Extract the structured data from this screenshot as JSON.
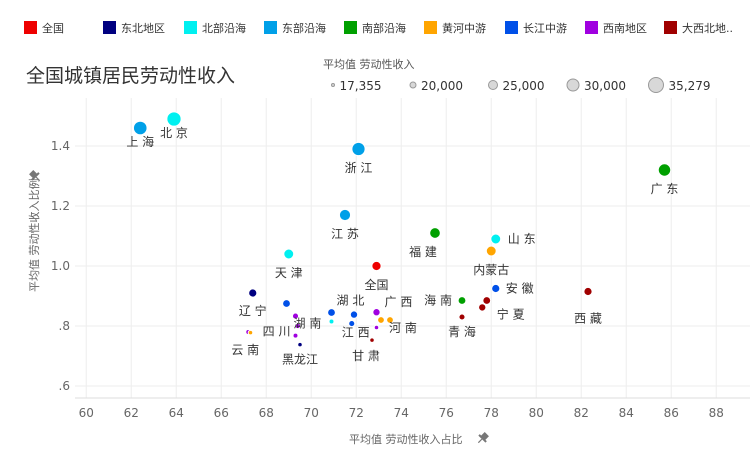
{
  "title": "全国城镇居民劳动性收入",
  "legend": {
    "items": [
      {
        "name": "全国",
        "color": "#ee0000"
      },
      {
        "name": "东北地区",
        "color": "#000080"
      },
      {
        "name": "北部沿海",
        "color": "#00f0f0"
      },
      {
        "name": "东部沿海",
        "color": "#00a0e8"
      },
      {
        "name": "南部沿海",
        "color": "#00a000"
      },
      {
        "name": "黄河中游",
        "color": "#ffa500"
      },
      {
        "name": "长江中游",
        "color": "#0050e8"
      },
      {
        "name": "西南地区",
        "color": "#a000e0"
      },
      {
        "name": "大西北地..",
        "color": "#a00000"
      }
    ]
  },
  "size_legend": {
    "title": "平均值 劳动性收入",
    "items": [
      "17,355",
      "20,000",
      "25,000",
      "30,000",
      "35,279"
    ]
  },
  "icons": {
    "x_axis_pin": "pin-icon",
    "y_axis_pin": "pin-icon"
  },
  "chart_data": {
    "type": "scatter",
    "xlabel": "平均值 劳动性收入占比",
    "ylabel": "平均值 劳动性收入比例",
    "xlim": [
      59.5,
      89.5
    ],
    "ylim": [
      0.56,
      1.56
    ],
    "x_ticks": [
      "60",
      "62",
      "64",
      "66",
      "68",
      "70",
      "72",
      "74",
      "76",
      "78",
      "80",
      "82",
      "84",
      "86",
      "88"
    ],
    "y_ticks": [
      ".6",
      ".8",
      "1.0",
      "1.2",
      "1.4"
    ],
    "points": [
      {
        "label": "上 海",
        "x": 62.4,
        "y": 1.46,
        "size": 31000,
        "group": "东部沿海"
      },
      {
        "label": "北 京",
        "x": 63.9,
        "y": 1.49,
        "size": 33000,
        "group": "北部沿海"
      },
      {
        "label": "浙 江",
        "x": 72.1,
        "y": 1.39,
        "size": 30000,
        "group": "东部沿海"
      },
      {
        "label": "广 东",
        "x": 85.7,
        "y": 1.32,
        "size": 28000,
        "group": "南部沿海"
      },
      {
        "label": "江 苏",
        "x": 71.5,
        "y": 1.17,
        "size": 25000,
        "group": "东部沿海"
      },
      {
        "label": "福 建",
        "x": 75.5,
        "y": 1.11,
        "size": 24000,
        "group": "南部沿海"
      },
      {
        "label": "山 东",
        "x": 78.2,
        "y": 1.09,
        "size": 22500,
        "group": "北部沿海"
      },
      {
        "label": "内蒙古",
        "x": 78.0,
        "y": 1.05,
        "size": 22500,
        "group": "黄河中游"
      },
      {
        "label": "天 津",
        "x": 69.0,
        "y": 1.04,
        "size": 22500,
        "group": "北部沿海"
      },
      {
        "label": "全国",
        "x": 72.9,
        "y": 1.0,
        "size": 21500,
        "group": "全国"
      },
      {
        "label": "辽 宁",
        "x": 67.4,
        "y": 0.91,
        "size": 20000,
        "group": "东北地区"
      },
      {
        "label": "湖 南",
        "x": 68.9,
        "y": 0.875,
        "size": 19500,
        "group": "长江中游"
      },
      {
        "label": "湖 北",
        "x": 70.9,
        "y": 0.845,
        "size": 19500,
        "group": "长江中游"
      },
      {
        "label": "",
        "x": 71.9,
        "y": 0.838,
        "size": 19000,
        "group": "长江中游"
      },
      {
        "label": "广 西",
        "x": 72.9,
        "y": 0.846,
        "size": 19000,
        "group": "西南地区"
      },
      {
        "label": "海 南",
        "x": 76.7,
        "y": 0.885,
        "size": 19500,
        "group": "南部沿海"
      },
      {
        "label": "安 徽",
        "x": 78.2,
        "y": 0.925,
        "size": 20000,
        "group": "长江中游"
      },
      {
        "label": "西 藏",
        "x": 82.3,
        "y": 0.915,
        "size": 20000,
        "group": "大西北地.."
      },
      {
        "label": "宁 夏",
        "x": 77.8,
        "y": 0.885,
        "size": 19500,
        "group": "大西北地.."
      },
      {
        "label": "",
        "x": 77.6,
        "y": 0.862,
        "size": 19000,
        "group": "大西北地.."
      },
      {
        "label": "青 海",
        "x": 76.7,
        "y": 0.83,
        "size": 18000,
        "group": "大西北地.."
      },
      {
        "label": "",
        "x": 70.9,
        "y": 0.815,
        "size": 17500,
        "group": "北部沿海"
      },
      {
        "label": "江 西",
        "x": 71.8,
        "y": 0.808,
        "size": 18000,
        "group": "长江中游"
      },
      {
        "label": "河 南",
        "x": 73.1,
        "y": 0.82,
        "size": 18500,
        "group": "黄河中游"
      },
      {
        "label": "",
        "x": 73.5,
        "y": 0.82,
        "size": 18500,
        "group": "黄河中游"
      },
      {
        "label": "",
        "x": 69.3,
        "y": 0.833,
        "size": 18000,
        "group": "西南地区"
      },
      {
        "label": "",
        "x": 69.4,
        "y": 0.8,
        "size": 17600,
        "group": "西南地区"
      },
      {
        "label": "四 川",
        "x": 69.3,
        "y": 0.768,
        "size": 17500,
        "group": "西南地区"
      },
      {
        "label": "黑龙江",
        "x": 69.5,
        "y": 0.738,
        "size": 17400,
        "group": "东北地区"
      },
      {
        "label": "云 南",
        "x": 67.2,
        "y": 0.78,
        "size": 17500,
        "group": "西南地区"
      },
      {
        "label": "",
        "x": 67.3,
        "y": 0.778,
        "size": 17400,
        "group": "黄河中游"
      },
      {
        "label": "甘 肃",
        "x": 72.7,
        "y": 0.753,
        "size": 17400,
        "group": "大西北地.."
      },
      {
        "label": "",
        "x": 72.9,
        "y": 0.795,
        "size": 17400,
        "group": "西南地区"
      }
    ]
  }
}
